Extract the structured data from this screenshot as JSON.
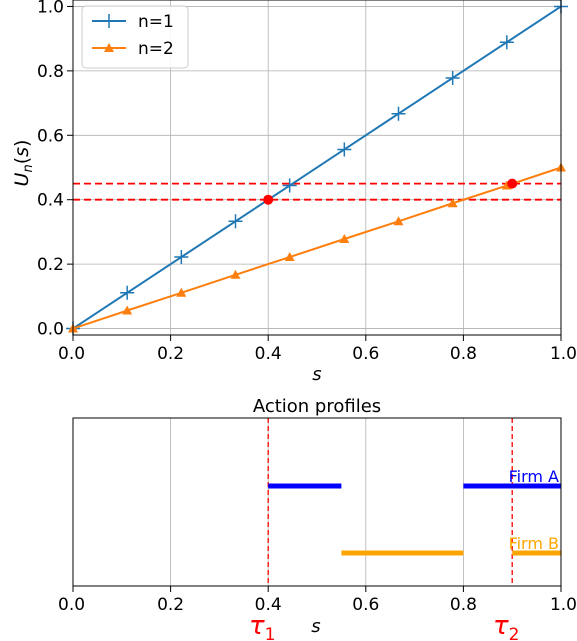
{
  "chart_data": [
    {
      "type": "line",
      "title": "",
      "xlabel": "s",
      "ylabel": "U_n(s)",
      "xlim": [
        0,
        1
      ],
      "ylim": [
        -0.02,
        1.02
      ],
      "xticks": [
        "0.0",
        "0.2",
        "0.4",
        "0.6",
        "0.8",
        "1.0"
      ],
      "yticks": [
        "0.0",
        "0.2",
        "0.4",
        "0.6",
        "0.8",
        "1.0"
      ],
      "grid": true,
      "legend_position": "top-left",
      "series": [
        {
          "name": "n=1",
          "color": "#1f77b4",
          "marker": "plus",
          "x": [
            0,
            0.111,
            0.222,
            0.333,
            0.444,
            0.556,
            0.667,
            0.778,
            0.889,
            1.0
          ],
          "y": [
            0,
            0.111,
            0.222,
            0.333,
            0.444,
            0.556,
            0.667,
            0.778,
            0.889,
            1.0
          ]
        },
        {
          "name": "n=2",
          "color": "#ff7f0e",
          "marker": "triangle",
          "x": [
            0,
            0.111,
            0.222,
            0.333,
            0.444,
            0.556,
            0.667,
            0.778,
            0.889,
            1.0
          ],
          "y": [
            0,
            0.056,
            0.111,
            0.167,
            0.222,
            0.278,
            0.333,
            0.389,
            0.444,
            0.5
          ]
        }
      ],
      "hlines": [
        {
          "y": 0.4,
          "color": "#ff0000",
          "style": "dashed"
        },
        {
          "y": 0.45,
          "color": "#ff0000",
          "style": "dashed"
        }
      ],
      "highlight_points": [
        {
          "x": 0.4,
          "y": 0.4,
          "color": "#ff0000"
        },
        {
          "x": 0.9,
          "y": 0.45,
          "color": "#ff0000"
        }
      ]
    },
    {
      "type": "segments",
      "title": "Action profiles",
      "xlabel": "s",
      "xlim": [
        0,
        1
      ],
      "xticks": [
        "0.0",
        "0.2",
        "0.4",
        "0.6",
        "0.8",
        "1.0"
      ],
      "grid": "vertical",
      "series": [
        {
          "name": "Firm A",
          "color": "#0000ff",
          "level": 1,
          "segments": [
            [
              0.4,
              0.55
            ],
            [
              0.8,
              1.0
            ]
          ]
        },
        {
          "name": "Firm B",
          "color": "#ffa500",
          "level": 0,
          "segments": [
            [
              0.55,
              0.8
            ],
            [
              0.9,
              1.0
            ]
          ]
        }
      ],
      "vlines": [
        {
          "x": 0.4,
          "label_main": "τ",
          "label_sub": "1",
          "color": "#ff0000"
        },
        {
          "x": 0.9,
          "label_main": "τ",
          "label_sub": "2",
          "color": "#ff0000"
        }
      ]
    }
  ]
}
